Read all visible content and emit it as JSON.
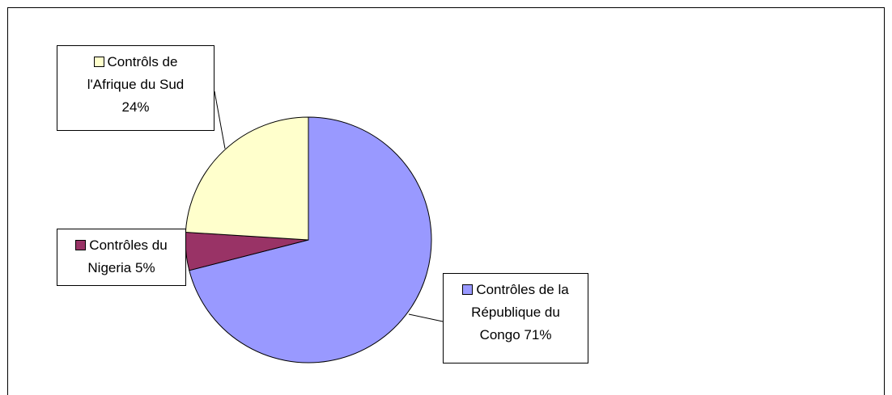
{
  "chart_data": {
    "type": "pie",
    "categories": [
      "Contrôles de la République du Congo",
      "Contrôles du Nigeria",
      "Contrôls de l'Afrique du Sud"
    ],
    "values": [
      71,
      5,
      24
    ],
    "value_labels": [
      "71%",
      "5%",
      "24%"
    ],
    "colors": [
      "#9999ff",
      "#993366",
      "#ffffcc"
    ]
  }
}
